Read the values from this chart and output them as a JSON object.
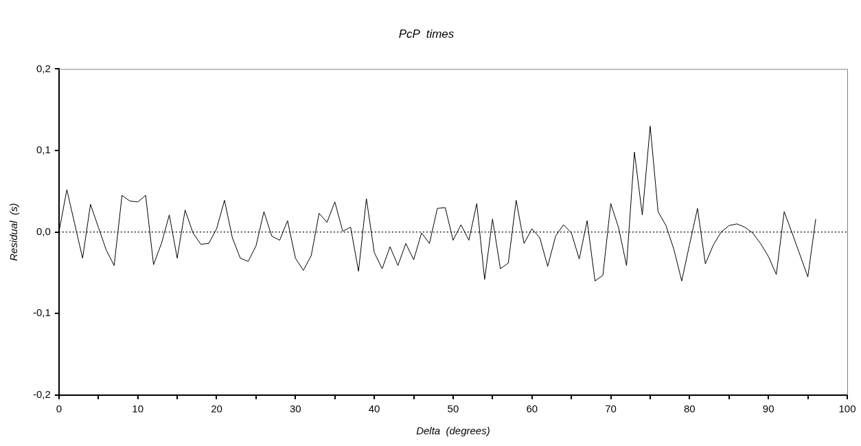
{
  "chart_data": {
    "type": "line",
    "title": "PcP  times",
    "xlabel": "Delta  (degrees)",
    "ylabel": "Residual  (s)",
    "x": [
      0,
      1,
      2,
      3,
      4,
      5,
      6,
      7,
      8,
      9,
      10,
      11,
      12,
      13,
      14,
      15,
      16,
      17,
      18,
      19,
      20,
      21,
      22,
      23,
      24,
      25,
      26,
      27,
      28,
      29,
      30,
      31,
      32,
      33,
      34,
      35,
      36,
      37,
      38,
      39,
      40,
      41,
      42,
      43,
      44,
      45,
      46,
      47,
      48,
      49,
      50,
      51,
      52,
      53,
      54,
      55,
      56,
      57,
      58,
      59,
      60,
      61,
      62,
      63,
      64,
      65,
      66,
      67,
      68,
      69,
      70,
      71,
      72,
      73,
      74,
      75,
      76,
      77,
      78,
      79,
      80,
      81,
      82,
      83,
      84,
      85,
      86,
      87,
      88,
      89,
      90,
      91,
      92,
      93,
      94,
      95,
      96
    ],
    "series": [
      {
        "color": "#000000",
        "values": [
          0,
          0.052,
          0.01,
          -0.032,
          0.034,
          0.006,
          -0.022,
          -0.041,
          0.045,
          0.038,
          0.037,
          0.045,
          -0.04,
          -0.014,
          0.021,
          -0.032,
          0.027,
          -0.001,
          -0.015,
          -0.014,
          0.004,
          0.039,
          -0.007,
          -0.032,
          -0.036,
          -0.017,
          0.025,
          -0.005,
          -0.01,
          0.014,
          -0.032,
          -0.047,
          -0.029,
          0.023,
          0.012,
          0.037,
          0.001,
          0.006,
          -0.048,
          0.041,
          -0.025,
          -0.045,
          -0.018,
          -0.041,
          -0.014,
          -0.034,
          -0.001,
          -0.014,
          0.029,
          0.03,
          -0.01,
          0.009,
          -0.01,
          0.035,
          -0.058,
          0.016,
          -0.045,
          -0.038,
          0.039,
          -0.014,
          0.004,
          -0.007,
          -0.042,
          -0.005,
          0.009,
          -0.001,
          -0.033,
          0.014,
          -0.06,
          -0.053,
          0.035,
          0.005,
          -0.041,
          0.098,
          0.021,
          0.13,
          0.025,
          0.008,
          -0.021,
          -0.06,
          -0.015,
          0.029,
          -0.039,
          -0.016,
          0,
          0.008,
          0.01,
          0.006,
          -0.001,
          -0.014,
          -0.03,
          -0.052,
          0.025,
          -0.001,
          -0.028,
          -0.055,
          0.016
        ]
      }
    ],
    "xlim": [
      0,
      100
    ],
    "xticks": [
      0,
      {
        "value": 5,
        "label": null
      },
      10,
      {
        "value": 15,
        "label": null
      },
      20,
      {
        "value": 25,
        "label": null
      },
      30,
      {
        "value": 35,
        "label": null
      },
      40,
      {
        "value": 45,
        "label": null
      },
      50,
      {
        "value": 55,
        "label": null
      },
      60,
      {
        "value": 65,
        "label": null
      },
      70,
      {
        "value": 75,
        "label": null
      },
      80,
      {
        "value": 85,
        "label": null
      },
      90,
      {
        "value": 95,
        "label": null
      },
      100
    ],
    "ylim": [
      -0.2,
      0.2
    ],
    "yticks": [
      {
        "value": -0.2,
        "label": "-0,2"
      },
      {
        "value": -0.1,
        "label": "-0,1"
      },
      {
        "value": 0,
        "label": "0,0"
      },
      {
        "value": 0.1,
        "label": "0,1"
      },
      {
        "value": 0.2,
        "label": "0,2"
      }
    ],
    "ref_lines": [
      {
        "axis": "y",
        "value": 0,
        "color": "#000000",
        "line_style": "dotted"
      }
    ],
    "grid": false,
    "legend": false,
    "marker": "none",
    "line_style": "solid"
  }
}
